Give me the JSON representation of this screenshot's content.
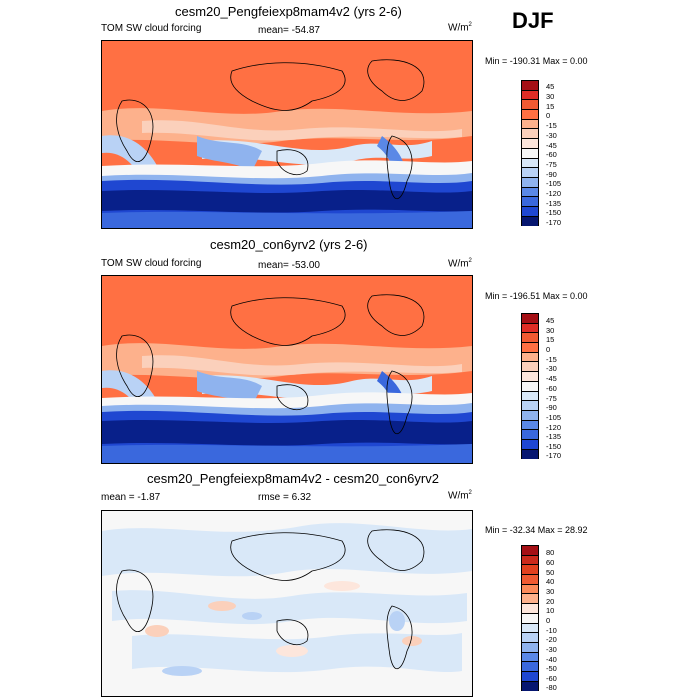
{
  "season": "DJF",
  "colors": {
    "pos3": "#a50f15",
    "pos2": "#de2d26",
    "pos1": "#f05a32",
    "pos0": "#ff7043",
    "n0": "#fdb18c",
    "n1": "#fbd0bb",
    "n2": "#fde6dc",
    "n3": "#f7f7f7",
    "n4": "#d9e8f8",
    "n5": "#b9d2f5",
    "n6": "#8fb3ee",
    "n7": "#5a88e6",
    "n8": "#3a68dd",
    "n9": "#1f47d1",
    "n10": "#0d2fb8",
    "n11": "#08208a",
    "n12": "#061670"
  },
  "panels": [
    {
      "title": "cesm20_Pengfeiexp8mam4v2 (yrs 2-6)",
      "left_label": "TOM SW cloud forcing",
      "center_label": "mean= -54.87",
      "units": "W/m",
      "units_sup": "2",
      "minmax": "Min = -190.31 Max =   0.00",
      "colorbar_labels": [
        "45",
        "30",
        "15",
        "0",
        "-15",
        "-30",
        "-45",
        "-60",
        "-75",
        "-90",
        "-105",
        "-120",
        "-135",
        "-150",
        "-170"
      ]
    },
    {
      "title": "cesm20_con6yrv2 (yrs 2-6)",
      "left_label": "TOM SW cloud forcing",
      "center_label": "mean= -53.00",
      "units": "W/m",
      "units_sup": "2",
      "minmax": "Min = -196.51 Max =   0.00",
      "colorbar_labels": [
        "45",
        "30",
        "15",
        "0",
        "-15",
        "-30",
        "-45",
        "-60",
        "-75",
        "-90",
        "-105",
        "-120",
        "-135",
        "-150",
        "-170"
      ]
    },
    {
      "title": "cesm20_Pengfeiexp8mam4v2 - cesm20_con6yrv2",
      "left_label": "mean =  -1.87",
      "center_label": "rmse =   6.32",
      "units": "W/m",
      "units_sup": "2",
      "minmax": "Min = -32.34 Max =  28.92",
      "colorbar_labels": [
        "80",
        "60",
        "50",
        "40",
        "30",
        "20",
        "10",
        "0",
        "-10",
        "-20",
        "-30",
        "-40",
        "-50",
        "-60",
        "-80"
      ]
    }
  ],
  "chart_data": [
    {
      "type": "heatmap",
      "title": "cesm20_Pengfeiexp8mam4v2 (yrs 2-6)",
      "variable": "TOM SW cloud forcing",
      "units": "W/m2",
      "mean": -54.87,
      "min": -190.31,
      "max": 0.0,
      "levels": [
        45,
        30,
        15,
        0,
        -15,
        -30,
        -45,
        -60,
        -75,
        -90,
        -105,
        -120,
        -135,
        -150,
        -170
      ]
    },
    {
      "type": "heatmap",
      "title": "cesm20_con6yrv2 (yrs 2-6)",
      "variable": "TOM SW cloud forcing",
      "units": "W/m2",
      "mean": -53.0,
      "min": -196.51,
      "max": 0.0,
      "levels": [
        45,
        30,
        15,
        0,
        -15,
        -30,
        -45,
        -60,
        -75,
        -90,
        -105,
        -120,
        -135,
        -150,
        -170
      ]
    },
    {
      "type": "heatmap",
      "title": "cesm20_Pengfeiexp8mam4v2 - cesm20_con6yrv2",
      "units": "W/m2",
      "mean": -1.87,
      "rmse": 6.32,
      "min": -32.34,
      "max": 28.92,
      "levels": [
        80,
        60,
        50,
        40,
        30,
        20,
        10,
        0,
        -10,
        -20,
        -30,
        -40,
        -50,
        -60,
        -80
      ]
    }
  ]
}
